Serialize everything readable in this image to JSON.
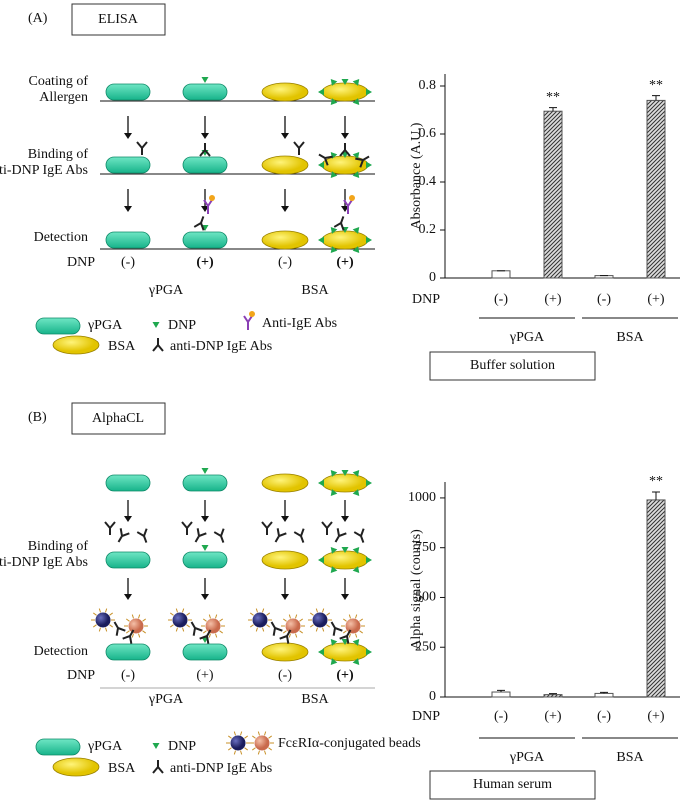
{
  "panel_a": {
    "label": "(A)",
    "method": "ELISA",
    "steps": [
      [
        "Coating of",
        "Allergen"
      ],
      [
        "Binding of",
        "anti-DNP IgE Abs"
      ],
      [
        "Detection"
      ]
    ],
    "dnp_label": "DNP",
    "dnp": [
      "(-)",
      "(+)",
      "(-)",
      "(+)"
    ],
    "groups": [
      "γPGA",
      "BSA"
    ],
    "legend": [
      "γPGA",
      "DNP",
      "Anti-IgE Abs",
      "BSA",
      "anti-DNP IgE Abs"
    ]
  },
  "panel_b": {
    "label": "(B)",
    "method": "AlphaCL",
    "steps": [
      [
        "Binding of",
        "anti-DNP IgE Abs"
      ],
      [
        "Detection"
      ]
    ],
    "dnp_label": "DNP",
    "dnp": [
      "(-)",
      "(+)",
      "(-)",
      "(+)"
    ],
    "groups": [
      "γPGA",
      "BSA"
    ],
    "legend": [
      "γPGA",
      "DNP",
      "FcεRIα-conjugated beads",
      "BSA",
      "anti-DNP IgE Abs"
    ]
  },
  "chart_data": [
    {
      "type": "bar",
      "y_label": "Absorbance (A.U.)",
      "x_row_label": "DNP",
      "categories": [
        "(-)",
        "(+)",
        "(-)",
        "(+)"
      ],
      "groups": [
        "γPGA",
        "BSA"
      ],
      "values": [
        0.03,
        0.695,
        0.01,
        0.74
      ],
      "errors": [
        0,
        0.015,
        0,
        0.02
      ],
      "significance": [
        null,
        "**",
        null,
        "**"
      ],
      "ylim": [
        0,
        0.85
      ],
      "yticks": [
        0,
        0.2,
        0.4,
        0.6,
        0.8
      ],
      "condition": "Buffer solution",
      "color": "#555555"
    },
    {
      "type": "bar",
      "y_label": "Alpha signal (counts)",
      "x_row_label": "DNP",
      "categories": [
        "(-)",
        "(+)",
        "(-)",
        "(+)"
      ],
      "groups": [
        "γPGA",
        "BSA"
      ],
      "values": [
        25,
        12,
        18,
        990
      ],
      "errors": [
        8,
        5,
        5,
        40
      ],
      "significance": [
        null,
        null,
        null,
        "**"
      ],
      "ylim": [
        0,
        1080
      ],
      "yticks": [
        0,
        250,
        500,
        750,
        1000
      ],
      "condition": "Human serum",
      "color": "#555555"
    }
  ]
}
